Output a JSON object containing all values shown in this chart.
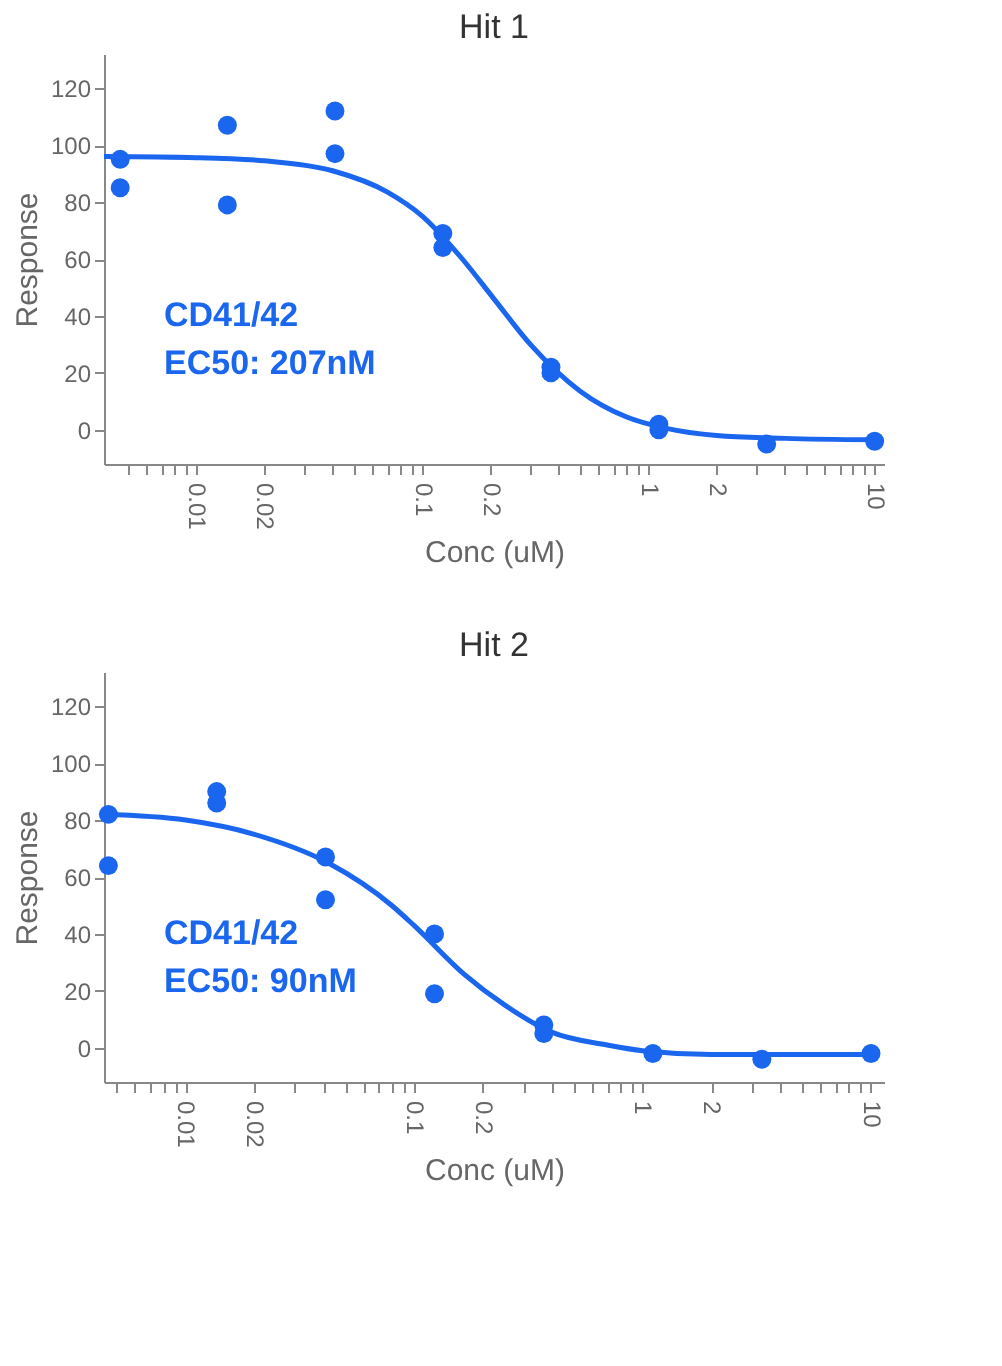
{
  "chart_data": [
    {
      "type": "scatter",
      "title": "Hit 1",
      "xlabel": "Conc (uM)",
      "ylabel": "Response",
      "log": "x",
      "grid": false,
      "xlim": [
        0.0039,
        11
      ],
      "ylim": [
        -12,
        132
      ],
      "xticks": [
        {
          "value": 0.005,
          "label": null
        },
        {
          "value": 0.006,
          "label": null
        },
        {
          "value": 0.007,
          "label": null
        },
        {
          "value": 0.008,
          "label": null
        },
        {
          "value": 0.009,
          "label": null
        },
        0.01,
        0.02,
        {
          "value": 0.03,
          "label": null
        },
        {
          "value": 0.04,
          "label": null
        },
        {
          "value": 0.05,
          "label": null
        },
        {
          "value": 0.06,
          "label": null
        },
        {
          "value": 0.07,
          "label": null
        },
        {
          "value": 0.08,
          "label": null
        },
        {
          "value": 0.09,
          "label": null
        },
        0.1,
        0.2,
        {
          "value": 0.3,
          "label": null
        },
        {
          "value": 0.4,
          "label": null
        },
        {
          "value": 0.5,
          "label": null
        },
        {
          "value": 0.6,
          "label": null
        },
        {
          "value": 0.7,
          "label": null
        },
        {
          "value": 0.8,
          "label": null
        },
        {
          "value": 0.9,
          "label": null
        },
        1,
        2,
        {
          "value": 3,
          "label": null
        },
        {
          "value": 4,
          "label": null
        },
        {
          "value": 5,
          "label": null
        },
        {
          "value": 6,
          "label": null
        },
        {
          "value": 7,
          "label": null
        },
        {
          "value": 8,
          "label": null
        },
        {
          "value": 9,
          "label": null
        },
        10
      ],
      "yticks": [
        0,
        20,
        40,
        60,
        80,
        100,
        120
      ],
      "annotations": [
        "CD41/42",
        "EC50: 207nM"
      ],
      "series": [
        {
          "type": "scatter",
          "color": "#1a66ee",
          "x": [
            0.0046,
            0.0046,
            0.0137,
            0.0137,
            0.041,
            0.041,
            0.123,
            0.123,
            0.37,
            0.37,
            1.11,
            1.11,
            3.33,
            10
          ],
          "values": [
            95,
            85,
            107,
            79,
            112,
            97,
            69,
            64,
            22,
            20,
            2,
            0,
            -5,
            -4
          ]
        },
        {
          "type": "line",
          "color": "#1a66ee",
          "x": [
            0.0039,
            0.01,
            0.02,
            0.04,
            0.07,
            0.1,
            0.15,
            0.207,
            0.3,
            0.5,
            0.8,
            1.2,
            2,
            4,
            10
          ],
          "values": [
            96,
            95.6,
            94.5,
            91,
            83.5,
            75,
            60,
            46,
            30,
            13.5,
            4.5,
            0.5,
            -2,
            -3,
            -3.5
          ]
        }
      ]
    },
    {
      "type": "scatter",
      "title": "Hit 2",
      "xlabel": "Conc (uM)",
      "ylabel": "Response",
      "log": "x",
      "grid": false,
      "xlim": [
        0.0044,
        11.4
      ],
      "ylim": [
        -12,
        132
      ],
      "xticks": [
        {
          "value": 0.005,
          "label": null
        },
        {
          "value": 0.006,
          "label": null
        },
        {
          "value": 0.007,
          "label": null
        },
        {
          "value": 0.008,
          "label": null
        },
        {
          "value": 0.009,
          "label": null
        },
        0.01,
        0.02,
        {
          "value": 0.03,
          "label": null
        },
        {
          "value": 0.04,
          "label": null
        },
        {
          "value": 0.05,
          "label": null
        },
        {
          "value": 0.06,
          "label": null
        },
        {
          "value": 0.07,
          "label": null
        },
        {
          "value": 0.08,
          "label": null
        },
        {
          "value": 0.09,
          "label": null
        },
        0.1,
        0.2,
        {
          "value": 0.3,
          "label": null
        },
        {
          "value": 0.4,
          "label": null
        },
        {
          "value": 0.5,
          "label": null
        },
        {
          "value": 0.6,
          "label": null
        },
        {
          "value": 0.7,
          "label": null
        },
        {
          "value": 0.8,
          "label": null
        },
        {
          "value": 0.9,
          "label": null
        },
        1,
        2,
        {
          "value": 3,
          "label": null
        },
        {
          "value": 4,
          "label": null
        },
        {
          "value": 5,
          "label": null
        },
        {
          "value": 6,
          "label": null
        },
        {
          "value": 7,
          "label": null
        },
        {
          "value": 8,
          "label": null
        },
        {
          "value": 9,
          "label": null
        },
        10
      ],
      "yticks": [
        0,
        20,
        40,
        60,
        80,
        100,
        120
      ],
      "annotations": [
        "CD41/42",
        "EC50: 90nM"
      ],
      "series": [
        {
          "type": "scatter",
          "color": "#1a66ee",
          "x": [
            0.0046,
            0.0046,
            0.0137,
            0.0137,
            0.041,
            0.041,
            0.123,
            0.123,
            0.37,
            0.37,
            1.11,
            3.33,
            10
          ],
          "values": [
            82,
            64,
            90,
            86,
            67,
            52,
            40,
            19,
            8,
            5,
            -2,
            -4,
            -2
          ]
        },
        {
          "type": "line",
          "color": "#1a66ee",
          "x": [
            0.0044,
            0.01,
            0.02,
            0.042,
            0.08,
            0.1,
            0.165,
            0.25,
            0.4,
            0.7,
            1,
            2,
            10
          ],
          "values": [
            82,
            80,
            75,
            65,
            50,
            43,
            26,
            15,
            5.5,
            1,
            -1,
            -2.3,
            -2.3
          ]
        }
      ]
    }
  ]
}
